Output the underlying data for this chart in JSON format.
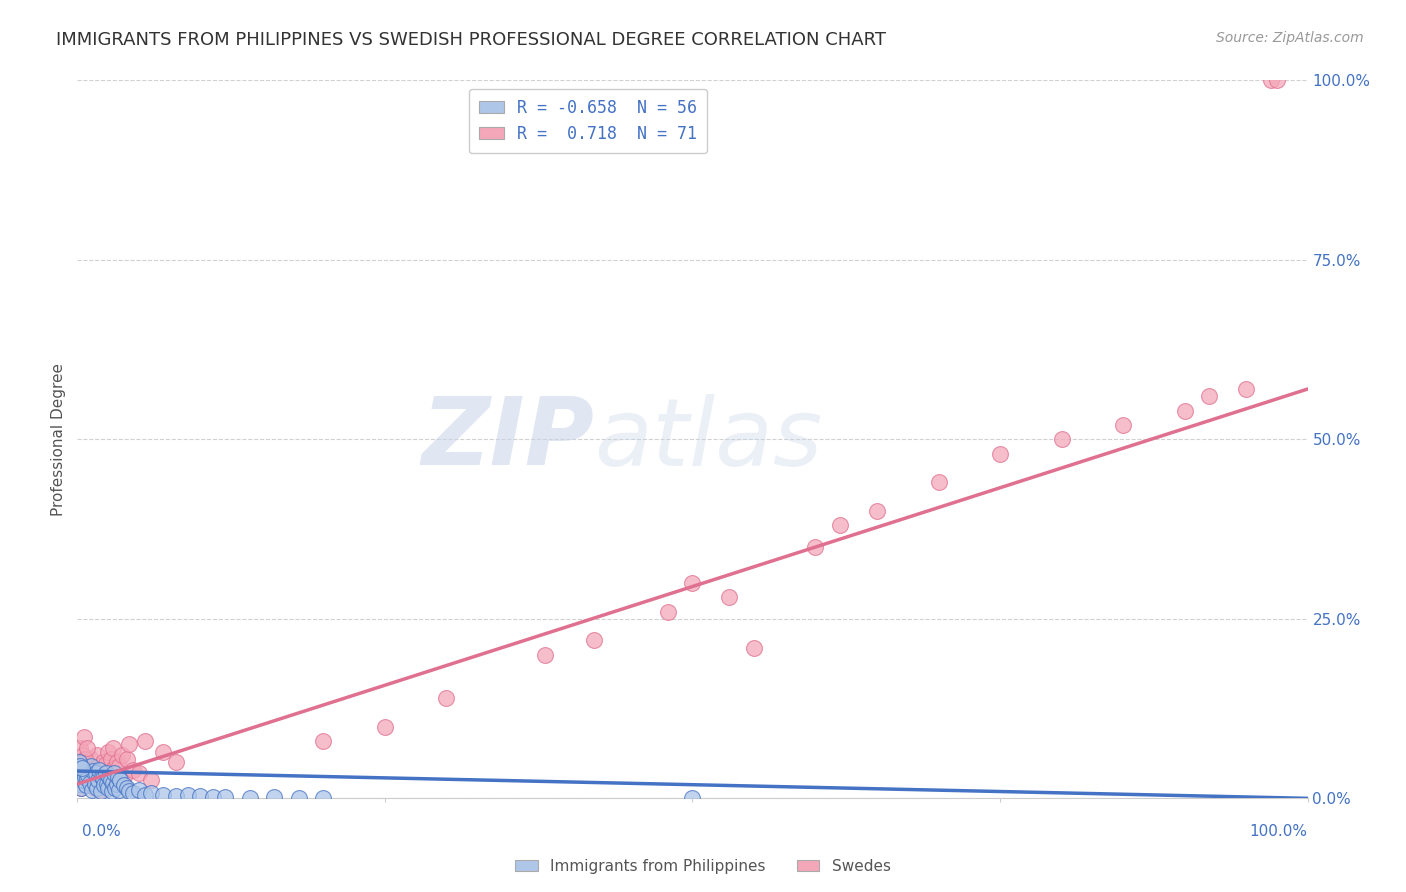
{
  "title": "IMMIGRANTS FROM PHILIPPINES VS SWEDISH PROFESSIONAL DEGREE CORRELATION CHART",
  "source": "Source: ZipAtlas.com",
  "ylabel": "Professional Degree",
  "ytick_labels": [
    "0.0%",
    "25.0%",
    "50.0%",
    "75.0%",
    "100.0%"
  ],
  "ytick_values": [
    0,
    25,
    50,
    75,
    100
  ],
  "xlim": [
    0,
    100
  ],
  "ylim": [
    0,
    100
  ],
  "legend_entries": [
    {
      "label": "R = -0.658  N = 56",
      "color": "#aec6e8"
    },
    {
      "label": "R =  0.718  N = 71",
      "color": "#f4a7b9"
    }
  ],
  "legend_bottom": [
    {
      "label": "Immigrants from Philippines",
      "color": "#aec6e8"
    },
    {
      "label": "Swedes",
      "color": "#f4a7b9"
    }
  ],
  "blue_scatter_x": [
    0.1,
    0.2,
    0.3,
    0.4,
    0.5,
    0.6,
    0.7,
    0.8,
    0.9,
    1.0,
    1.1,
    1.2,
    1.3,
    1.4,
    1.5,
    1.6,
    1.7,
    1.8,
    1.9,
    2.0,
    2.1,
    2.2,
    2.3,
    2.4,
    2.5,
    2.6,
    2.7,
    2.8,
    2.9,
    3.0,
    3.1,
    3.2,
    3.3,
    3.4,
    3.5,
    3.8,
    4.0,
    4.2,
    4.5,
    5.0,
    5.5,
    6.0,
    7.0,
    8.0,
    9.0,
    10.0,
    11.0,
    12.0,
    14.0,
    16.0,
    18.0,
    20.0,
    0.15,
    0.25,
    50.0,
    0.35
  ],
  "blue_scatter_y": [
    2.0,
    3.5,
    1.5,
    4.0,
    2.5,
    3.0,
    1.8,
    2.8,
    3.2,
    2.2,
    4.5,
    1.2,
    3.8,
    2.0,
    3.5,
    1.5,
    2.5,
    4.0,
    1.0,
    3.0,
    2.8,
    1.8,
    3.5,
    2.0,
    1.5,
    3.0,
    2.5,
    1.0,
    2.2,
    3.5,
    1.5,
    2.0,
    3.0,
    1.2,
    2.5,
    1.8,
    1.5,
    1.0,
    0.8,
    1.2,
    0.5,
    0.8,
    0.5,
    0.3,
    0.5,
    0.3,
    0.2,
    0.2,
    0.1,
    0.2,
    0.1,
    0.1,
    5.0,
    4.5,
    0.1,
    4.2
  ],
  "pink_scatter_x": [
    0.1,
    0.2,
    0.3,
    0.4,
    0.5,
    0.6,
    0.7,
    0.8,
    0.9,
    1.0,
    1.1,
    1.2,
    1.3,
    1.4,
    1.5,
    1.6,
    1.7,
    1.8,
    1.9,
    2.0,
    2.1,
    2.2,
    2.3,
    2.4,
    2.5,
    2.6,
    2.7,
    2.8,
    2.9,
    3.0,
    3.2,
    3.4,
    3.6,
    3.8,
    4.0,
    4.2,
    4.5,
    5.0,
    5.5,
    6.0,
    7.0,
    8.0,
    0.15,
    0.25,
    0.35,
    0.45,
    0.55,
    0.65,
    0.75,
    0.85,
    20.0,
    25.0,
    30.0,
    38.0,
    42.0,
    48.0,
    50.0,
    53.0,
    55.0,
    60.0,
    62.0,
    65.0,
    70.0,
    75.0,
    80.0,
    85.0,
    90.0,
    92.0,
    95.0,
    97.0,
    97.5
  ],
  "pink_scatter_y": [
    2.5,
    4.0,
    1.5,
    3.0,
    5.0,
    2.0,
    3.5,
    4.5,
    1.8,
    3.2,
    5.5,
    2.5,
    4.0,
    1.5,
    3.8,
    6.0,
    2.8,
    4.5,
    1.2,
    3.5,
    5.0,
    2.0,
    4.8,
    3.0,
    6.5,
    2.5,
    5.5,
    3.8,
    7.0,
    4.2,
    5.0,
    4.5,
    6.0,
    3.0,
    5.5,
    7.5,
    4.0,
    3.5,
    8.0,
    2.5,
    6.5,
    5.0,
    3.0,
    7.0,
    4.5,
    6.0,
    8.5,
    5.5,
    7.0,
    4.0,
    8.0,
    10.0,
    14.0,
    20.0,
    22.0,
    26.0,
    30.0,
    28.0,
    21.0,
    35.0,
    38.0,
    40.0,
    44.0,
    48.0,
    50.0,
    52.0,
    54.0,
    56.0,
    57.0,
    100.0,
    100.0
  ],
  "blue_line_x": [
    0,
    100
  ],
  "blue_line_y": [
    3.8,
    0.0
  ],
  "pink_line_x": [
    0,
    100
  ],
  "pink_line_y": [
    2.0,
    57.0
  ],
  "bg_color": "#ffffff",
  "grid_color": "#cccccc",
  "title_color": "#333333",
  "axis_label_color": "#4472c4",
  "blue_color": "#aec6e8",
  "pink_color": "#f4a7b9",
  "blue_line_color": "#4472c4",
  "pink_line_color": "#e07090",
  "watermark_text": "ZIPatlas",
  "r_label_color": "#4472c4"
}
